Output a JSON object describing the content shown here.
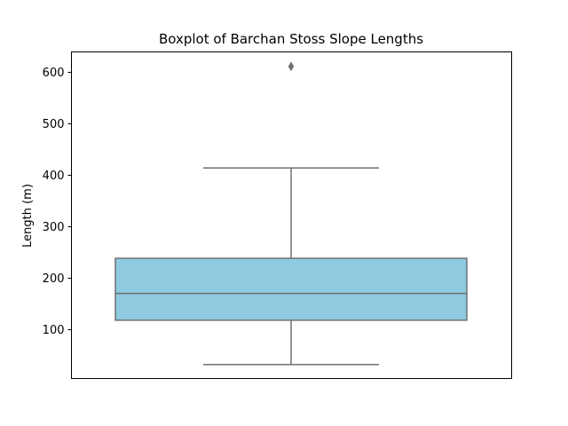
{
  "chart_data": {
    "type": "box",
    "title": "Boxplot of Barchan Stoss Slope Lengths",
    "xlabel": "",
    "ylabel": "Length (m)",
    "ylim": [
      5,
      638
    ],
    "yticks": [
      100,
      200,
      300,
      400,
      500,
      600
    ],
    "grid": false,
    "box": {
      "whisker_low": 32,
      "q1": 118,
      "median": 170,
      "q3": 238,
      "whisker_high": 413,
      "outliers": [
        610
      ]
    },
    "colors": {
      "box_fill": "#8ecae0",
      "box_line": "#707070",
      "outlier": "#707070"
    }
  }
}
